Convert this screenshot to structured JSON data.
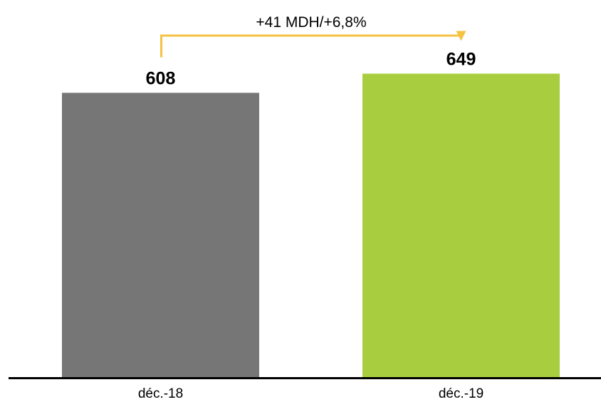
{
  "chart_data": {
    "type": "bar",
    "categories": [
      "déc.-18",
      "déc.-19"
    ],
    "values": [
      608,
      649
    ],
    "value_labels": [
      "608",
      "649"
    ],
    "bar_colors": [
      "#767676",
      "#a8ce40"
    ],
    "ylim": [
      0,
      700
    ],
    "grid": false,
    "legend": "none",
    "title": "",
    "xlabel": "",
    "ylabel": "",
    "annotation": {
      "text": "+41 MDH/+6,8%",
      "from_category": "déc.-18",
      "to_category": "déc.-19",
      "color": "#f5c242"
    },
    "axis_color": "#000000"
  }
}
